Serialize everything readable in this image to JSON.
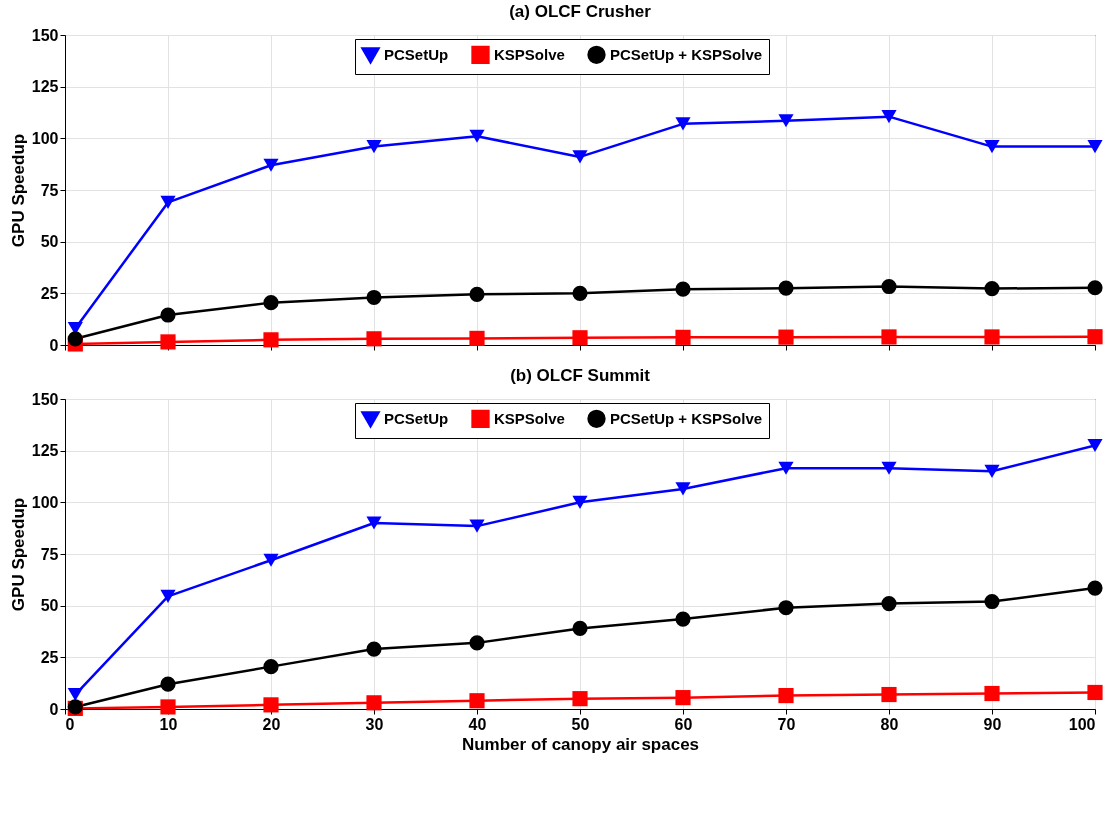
{
  "chart_data": [
    {
      "type": "line",
      "title": "(a) OLCF Crusher",
      "ylabel": "GPU Speedup",
      "x": [
        1,
        10,
        20,
        30,
        40,
        50,
        60,
        70,
        80,
        90,
        100
      ],
      "series": [
        {
          "name": "PCSetUp",
          "color": "#0000ff",
          "marker": "triangle",
          "values": [
            8,
            69,
            87,
            96,
            101,
            91,
            107,
            108.5,
            110.5,
            96,
            96
          ]
        },
        {
          "name": "KSPSolve",
          "color": "#ff0000",
          "marker": "square",
          "values": [
            0.5,
            1.5,
            2.5,
            3,
            3.2,
            3.5,
            3.7,
            3.8,
            3.9,
            3.9,
            4
          ]
        },
        {
          "name": "PCSetUp + KSPSolve",
          "color": "#000000",
          "marker": "circle",
          "values": [
            3,
            14.5,
            20.5,
            23,
            24.5,
            25,
            27,
            27.5,
            28.3,
            27.3,
            27.7
          ]
        }
      ],
      "xlim": [
        0,
        100
      ],
      "xticks": [
        0,
        10,
        20,
        30,
        40,
        50,
        60,
        70,
        80,
        90,
        100
      ],
      "ylim": [
        0,
        150
      ],
      "yticks": [
        0,
        25,
        50,
        75,
        100,
        125,
        150
      ],
      "grid": true,
      "legend": "top",
      "tick_labels": "y"
    },
    {
      "type": "line",
      "title": "(b) OLCF Summit",
      "xlabel": "Number of canopy air spaces",
      "ylabel": "GPU Speedup",
      "x": [
        1,
        10,
        20,
        30,
        40,
        50,
        60,
        70,
        80,
        90,
        100
      ],
      "series": [
        {
          "name": "PCSetUp",
          "color": "#0000ff",
          "marker": "triangle",
          "values": [
            7,
            54.5,
            72,
            90,
            88.5,
            100,
            106.5,
            116.5,
            116.5,
            115,
            127.5
          ]
        },
        {
          "name": "KSPSolve",
          "color": "#ff0000",
          "marker": "square",
          "values": [
            0.3,
            1,
            2,
            3,
            4,
            5,
            5.5,
            6.5,
            7,
            7.5,
            8
          ]
        },
        {
          "name": "PCSetUp + KSPSolve",
          "color": "#000000",
          "marker": "circle",
          "values": [
            1,
            12,
            20.5,
            29,
            32,
            39,
            43.5,
            49,
            51,
            52,
            58.5
          ]
        }
      ],
      "xlim": [
        0,
        100
      ],
      "xticks": [
        0,
        10,
        20,
        30,
        40,
        50,
        60,
        70,
        80,
        90,
        100
      ],
      "ylim": [
        0,
        150
      ],
      "yticks": [
        0,
        25,
        50,
        75,
        100,
        125,
        150
      ],
      "grid": true,
      "legend": "top"
    }
  ]
}
